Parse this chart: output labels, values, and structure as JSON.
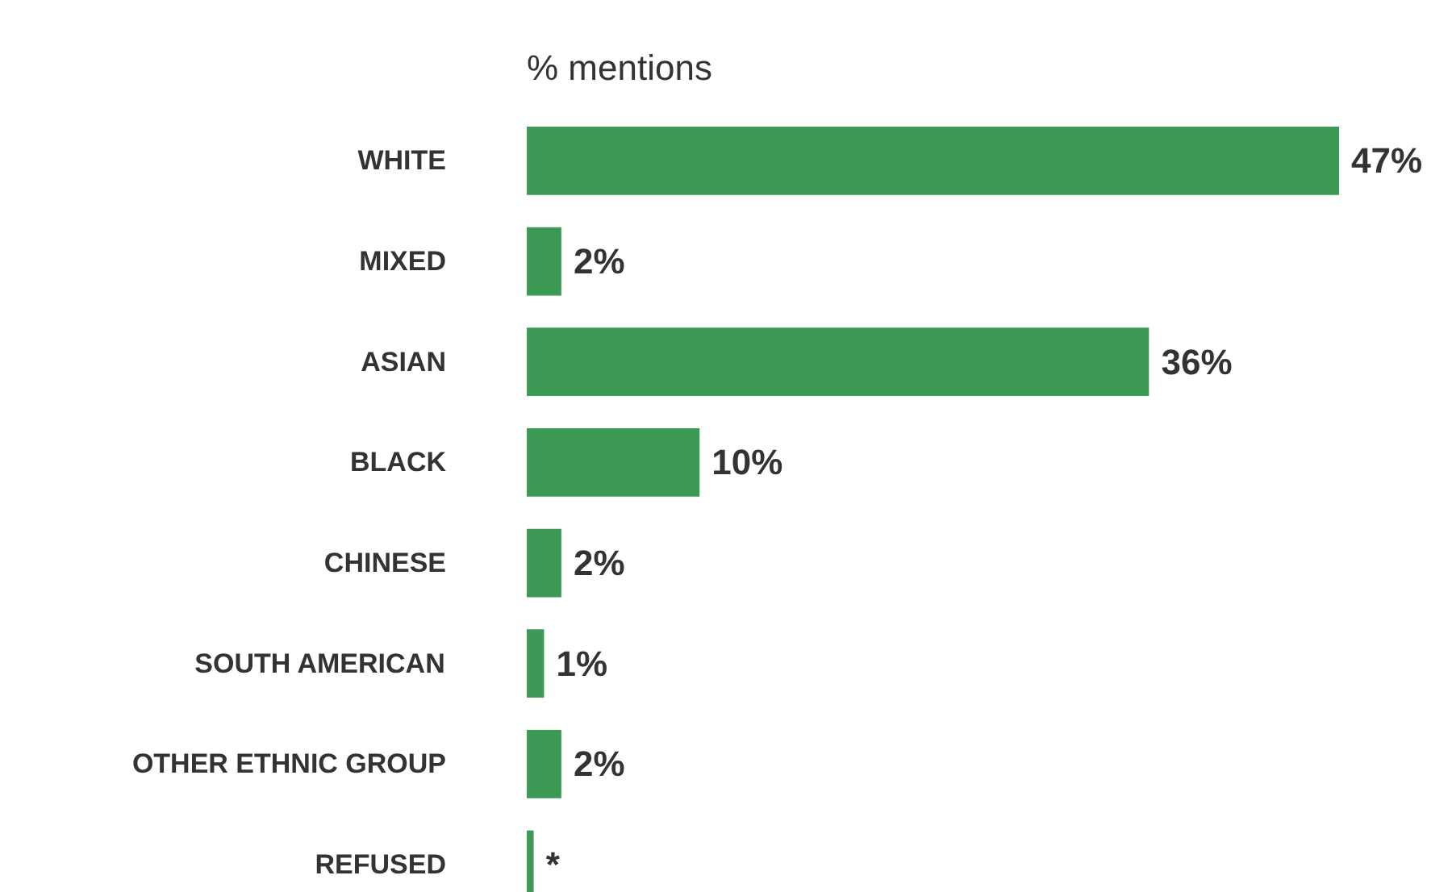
{
  "chart_data": {
    "type": "bar",
    "orientation": "horizontal",
    "title": "% mentions",
    "categories": [
      "WHITE",
      "MIXED",
      "ASIAN",
      "BLACK",
      "CHINESE",
      "SOUTH AMERICAN",
      "OTHER ETHNIC GROUP",
      "REFUSED"
    ],
    "values": [
      47,
      2,
      36,
      10,
      2,
      1,
      2,
      0.4
    ],
    "value_labels": [
      "47%",
      "2%",
      "36%",
      "10%",
      "2%",
      "1%",
      "2%",
      "*"
    ],
    "color": "#3c9a55",
    "grid": false
  }
}
